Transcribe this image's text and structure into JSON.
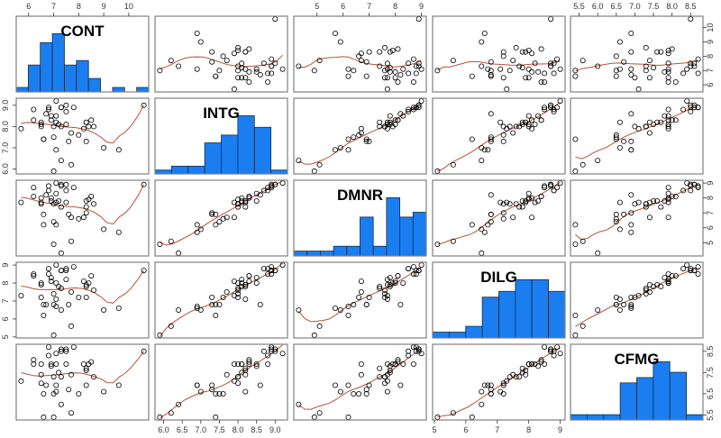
{
  "chart_data": {
    "type": "scatter",
    "subtype": "pairs-matrix",
    "title": "",
    "diagonal": "histogram",
    "lower": "scatter with loess smoother",
    "upper": "scatter with loess smoother",
    "colors": {
      "hist_fill": "#1a7ef0",
      "hist_border": "#1a2a44",
      "smoother": "#b5523b",
      "point": "#000000",
      "panel_border": "#808080"
    },
    "variables": [
      "CONT",
      "INTG",
      "DMNR",
      "DILG",
      "CFMG"
    ],
    "ranges": {
      "CONT": [
        5.7,
        10.6
      ],
      "INTG": [
        5.9,
        9.2
      ],
      "DMNR": [
        4.3,
        9.0
      ],
      "DILG": [
        5.1,
        9.0
      ],
      "CFMG": [
        5.4,
        8.7
      ]
    },
    "axis_ticks": {
      "top": [
        {
          "var": "CONT",
          "ticks": [
            "6",
            "7",
            "8",
            "9",
            "10"
          ]
        },
        {
          "var": "DMNR",
          "ticks": [
            "5",
            "6",
            "7",
            "8",
            "9"
          ]
        },
        {
          "var": "CFMG",
          "ticks": [
            "5.5",
            "6.0",
            "6.5",
            "7.0",
            "7.5",
            "8.0",
            "8.5"
          ]
        }
      ],
      "bottom": [
        {
          "var": "INTG",
          "ticks": [
            "6.0",
            "6.5",
            "7.0",
            "7.5",
            "8.0",
            "8.5",
            "9.0"
          ]
        },
        {
          "var": "DILG",
          "ticks": [
            "5",
            "6",
            "7",
            "8",
            "9"
          ]
        }
      ],
      "left": [
        {
          "var": "INTG",
          "ticks": [
            "6.0",
            "7.0",
            "8.0",
            "9.0"
          ]
        },
        {
          "var": "DILG",
          "ticks": [
            "5",
            "6",
            "7",
            "8",
            "9"
          ]
        }
      ],
      "right": [
        {
          "var": "CONT",
          "ticks": [
            "6",
            "7",
            "8",
            "9",
            "10"
          ]
        },
        {
          "var": "DMNR",
          "ticks": [
            "5",
            "6",
            "7",
            "8",
            "9"
          ]
        },
        {
          "var": "CFMG",
          "ticks": [
            "5.5",
            "6.5",
            "7.5",
            "8.5"
          ]
        }
      ]
    },
    "histograms": {
      "CONT": {
        "breaks": [
          5.5,
          6.0,
          6.5,
          7.0,
          7.5,
          8.0,
          8.5,
          9.0,
          9.5,
          10.0,
          10.5,
          11.0
        ],
        "counts": [
          1,
          6,
          11,
          13,
          6,
          7,
          3,
          0,
          1,
          0,
          1
        ]
      },
      "INTG": {
        "breaks": [
          5.5,
          6.0,
          6.5,
          7.0,
          7.5,
          8.0,
          8.5,
          9.0,
          9.5
        ],
        "counts": [
          1,
          2,
          2,
          8,
          10,
          15,
          12,
          1
        ]
      },
      "DMNR": {
        "breaks": [
          4.0,
          4.5,
          5.0,
          5.5,
          6.0,
          6.5,
          7.0,
          7.5,
          8.0,
          8.5,
          9.0
        ],
        "counts": [
          1,
          1,
          1,
          2,
          2,
          8,
          2,
          12,
          8,
          9
        ]
      },
      "DILG": {
        "breaks": [
          5.0,
          5.5,
          6.0,
          6.5,
          7.0,
          7.5,
          8.0,
          8.5,
          9.0
        ],
        "counts": [
          1,
          1,
          2,
          7,
          8,
          10,
          10,
          8
        ]
      },
      "CFMG": {
        "breaks": [
          5.0,
          5.5,
          6.0,
          6.5,
          7.0,
          7.5,
          8.0,
          8.5,
          9.0
        ],
        "counts": [
          1,
          1,
          1,
          7,
          8,
          11,
          9,
          1
        ]
      }
    },
    "observations": {
      "CONT": [
        5.7,
        6.8,
        7.2,
        6.8,
        7.3,
        6.2,
        10.6,
        7.0,
        7.3,
        8.2,
        7.0,
        6.5,
        6.7,
        7.0,
        6.5,
        7.3,
        8.0,
        7.7,
        8.3,
        9.6,
        7.1,
        7.6,
        6.6,
        6.2,
        7.5,
        7.8,
        7.1,
        7.5,
        7.5,
        7.1,
        6.6,
        8.4,
        6.9,
        7.3,
        7.7,
        8.5,
        6.9,
        6.5,
        8.3,
        8.3,
        9.0,
        7.1,
        8.6
      ],
      "INTG": [
        7.9,
        8.9,
        8.1,
        8.8,
        6.4,
        8.8,
        9.0,
        5.9,
        8.9,
        7.9,
        8.0,
        8.0,
        8.6,
        7.5,
        8.1,
        8.0,
        7.6,
        7.7,
        8.2,
        6.9,
        8.2,
        7.3,
        7.4,
        8.3,
        8.7,
        8.9,
        8.5,
        9.0,
        8.1,
        9.2,
        7.4,
        8.0,
        8.5,
        8.9,
        6.2,
        8.3,
        8.3,
        8.2,
        7.3,
        8.2,
        7.0,
        6.9,
        8.0
      ],
      "DMNR": [
        7.7,
        8.8,
        7.8,
        8.5,
        4.3,
        8.7,
        8.9,
        4.9,
        8.9,
        6.7,
        7.6,
        7.6,
        8.2,
        6.4,
        8.0,
        7.4,
        6.6,
        6.7,
        7.4,
        5.7,
        7.7,
        6.9,
        6.2,
        8.1,
        8.5,
        8.7,
        8.3,
        8.9,
        7.7,
        9.0,
        6.9,
        7.9,
        7.8,
        8.8,
        5.1,
        8.1,
        8.0,
        7.7,
        7.0,
        7.8,
        5.9,
        6.2,
        7.6
      ],
      "DILG": [
        7.3,
        8.5,
        7.8,
        8.8,
        6.5,
        8.5,
        8.7,
        5.1,
        8.7,
        8.1,
        7.4,
        7.2,
        6.8,
        6.8,
        8.0,
        7.7,
        7.2,
        7.5,
        7.8,
        6.6,
        7.1,
        6.8,
        6.2,
        8.4,
        8.8,
        8.9,
        8.0,
        8.7,
        8.2,
        9.0,
        6.8,
        8.0,
        8.3,
        8.7,
        5.6,
        8.4,
        8.1,
        7.9,
        7.2,
        7.9,
        6.5,
        6.7,
        7.6
      ],
      "CFMG": [
        7.1,
        8.7,
        7.5,
        8.3,
        6.0,
        7.9,
        8.5,
        5.4,
        8.6,
        7.9,
        7.3,
        7.0,
        6.9,
        6.5,
        7.9,
        7.3,
        6.5,
        7.4,
        7.7,
        6.9,
        6.6,
        6.7,
        5.4,
        8.1,
        8.5,
        8.7,
        7.9,
        8.6,
        7.9,
        8.4,
        6.5,
        7.9,
        7.8,
        8.5,
        5.6,
        8.0,
        7.9,
        7.4,
        6.9,
        7.6,
        6.6,
        6.9,
        7.3
      ]
    }
  }
}
